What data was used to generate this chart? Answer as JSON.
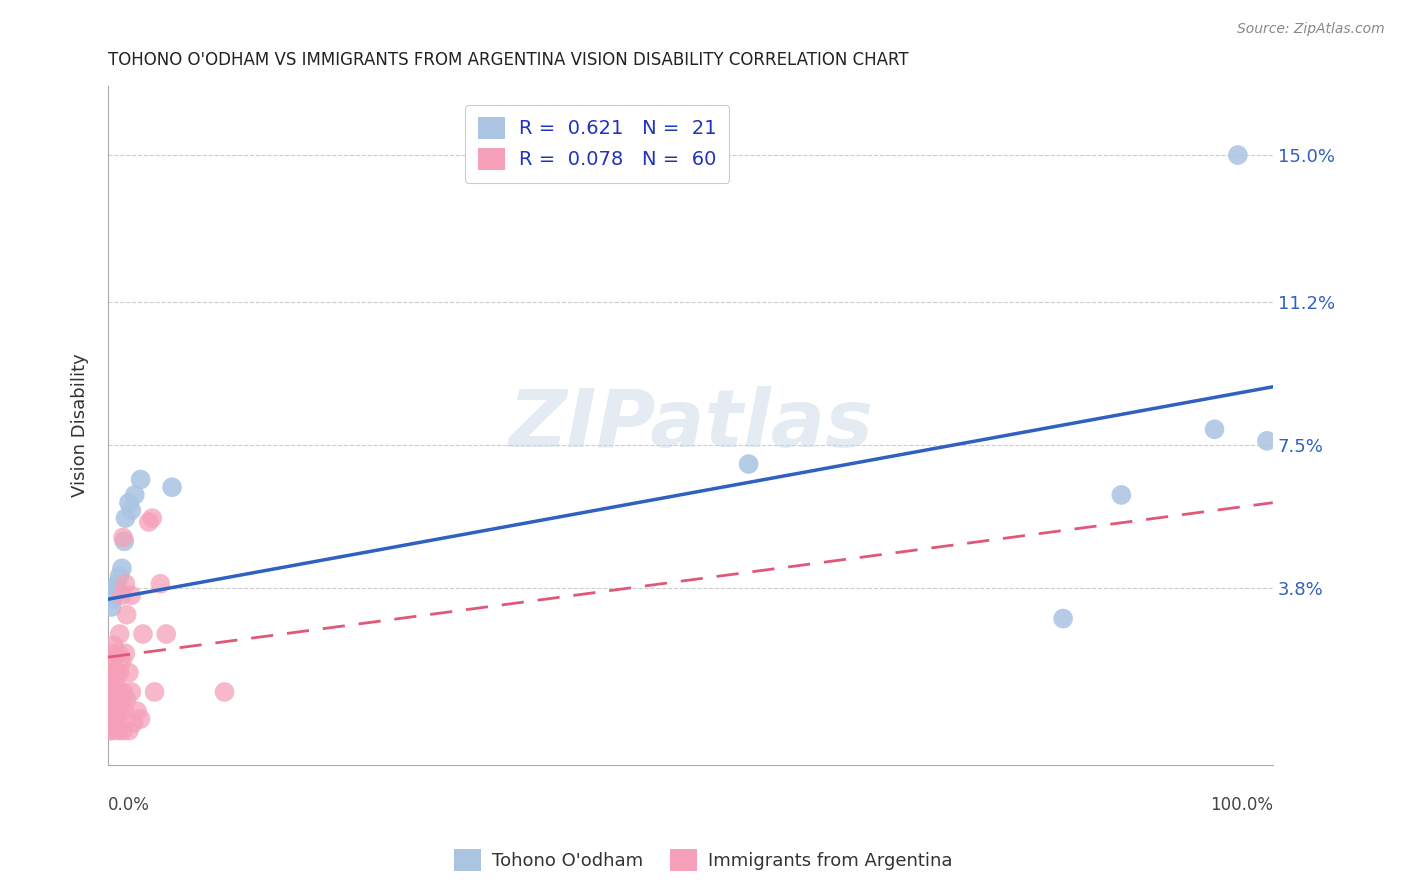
{
  "title": "TOHONO O'ODHAM VS IMMIGRANTS FROM ARGENTINA VISION DISABILITY CORRELATION CHART",
  "source": "Source: ZipAtlas.com",
  "ylabel": "Vision Disability",
  "yticks": [
    0.0,
    0.038,
    0.075,
    0.112,
    0.15
  ],
  "ytick_labels": [
    "",
    "3.8%",
    "7.5%",
    "11.2%",
    "15.0%"
  ],
  "xlim": [
    0.0,
    1.0
  ],
  "ylim": [
    -0.008,
    0.168
  ],
  "watermark": "ZIPatlas",
  "blue_color": "#aac4e2",
  "pink_color": "#f5a0b8",
  "blue_line_color": "#3060c0",
  "pink_line_color": "#e05878",
  "blue_line": [
    0.0,
    0.035,
    1.0,
    0.09
  ],
  "pink_line": [
    0.0,
    0.02,
    1.0,
    0.06
  ],
  "tohono_points": [
    [
      0.003,
      0.033
    ],
    [
      0.004,
      0.035
    ],
    [
      0.005,
      0.038
    ],
    [
      0.006,
      0.036
    ],
    [
      0.007,
      0.037
    ],
    [
      0.008,
      0.039
    ],
    [
      0.01,
      0.041
    ],
    [
      0.012,
      0.043
    ],
    [
      0.014,
      0.05
    ],
    [
      0.015,
      0.056
    ],
    [
      0.018,
      0.06
    ],
    [
      0.02,
      0.058
    ],
    [
      0.023,
      0.062
    ],
    [
      0.028,
      0.066
    ],
    [
      0.055,
      0.064
    ],
    [
      0.55,
      0.07
    ],
    [
      0.82,
      0.03
    ],
    [
      0.87,
      0.062
    ],
    [
      0.95,
      0.079
    ],
    [
      0.97,
      0.15
    ],
    [
      0.995,
      0.076
    ]
  ],
  "argentina_points": [
    [
      0.001,
      0.002
    ],
    [
      0.001,
      0.004
    ],
    [
      0.001,
      0.006
    ],
    [
      0.001,
      0.009
    ],
    [
      0.002,
      0.001
    ],
    [
      0.002,
      0.004
    ],
    [
      0.002,
      0.007
    ],
    [
      0.002,
      0.011
    ],
    [
      0.002,
      0.013
    ],
    [
      0.003,
      0.003
    ],
    [
      0.003,
      0.006
    ],
    [
      0.003,
      0.009
    ],
    [
      0.003,
      0.016
    ],
    [
      0.003,
      0.019
    ],
    [
      0.004,
      0.001
    ],
    [
      0.004,
      0.006
    ],
    [
      0.004,
      0.011
    ],
    [
      0.004,
      0.021
    ],
    [
      0.005,
      0.003
    ],
    [
      0.005,
      0.009
    ],
    [
      0.005,
      0.016
    ],
    [
      0.005,
      0.023
    ],
    [
      0.006,
      0.006
    ],
    [
      0.006,
      0.011
    ],
    [
      0.006,
      0.016
    ],
    [
      0.007,
      0.004
    ],
    [
      0.007,
      0.013
    ],
    [
      0.008,
      0.006
    ],
    [
      0.008,
      0.016
    ],
    [
      0.009,
      0.001
    ],
    [
      0.009,
      0.011
    ],
    [
      0.009,
      0.021
    ],
    [
      0.01,
      0.006
    ],
    [
      0.01,
      0.016
    ],
    [
      0.01,
      0.026
    ],
    [
      0.012,
      0.009
    ],
    [
      0.012,
      0.019
    ],
    [
      0.012,
      0.036
    ],
    [
      0.013,
      0.001
    ],
    [
      0.013,
      0.011
    ],
    [
      0.013,
      0.051
    ],
    [
      0.014,
      0.006
    ],
    [
      0.015,
      0.021
    ],
    [
      0.015,
      0.039
    ],
    [
      0.016,
      0.009
    ],
    [
      0.016,
      0.031
    ],
    [
      0.018,
      0.001
    ],
    [
      0.018,
      0.016
    ],
    [
      0.02,
      0.011
    ],
    [
      0.02,
      0.036
    ],
    [
      0.022,
      0.003
    ],
    [
      0.025,
      0.006
    ],
    [
      0.028,
      0.004
    ],
    [
      0.03,
      0.026
    ],
    [
      0.035,
      0.055
    ],
    [
      0.038,
      0.056
    ],
    [
      0.04,
      0.011
    ],
    [
      0.045,
      0.039
    ],
    [
      0.05,
      0.026
    ],
    [
      0.1,
      0.011
    ]
  ]
}
